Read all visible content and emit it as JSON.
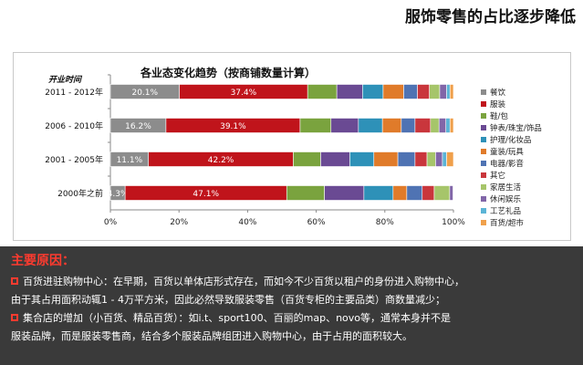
{
  "page": {
    "title": "服饰零售的占比逐步降低"
  },
  "chart_data": {
    "type": "bar",
    "orientation": "horizontal",
    "stacked": true,
    "percent_stacked": true,
    "title": "各业态变化趋势（按商铺数量计算）",
    "category_axis_title": "开业时间",
    "categories": [
      "2011 - 2012年",
      "2006 - 2010年",
      "2001 - 2005年",
      "2000年之前"
    ],
    "xlim": [
      0,
      100
    ],
    "x_ticks": [
      "0%",
      "20%",
      "40%",
      "60%",
      "80%",
      "100%"
    ],
    "legend_position": "right",
    "series": [
      {
        "name": "餐饮",
        "color": "#8c8c8c",
        "values": [
          20.1,
          16.2,
          11.1,
          4.3
        ],
        "labels": [
          "20.1%",
          "16.2%",
          "11.1%",
          "4.3%"
        ]
      },
      {
        "name": "服装",
        "color": "#c0141b",
        "values": [
          37.4,
          39.1,
          42.2,
          47.1
        ],
        "labels": [
          "37.4%",
          "39.1%",
          "42.2%",
          "47.1%"
        ]
      },
      {
        "name": "鞋/包",
        "color": "#7aa33e",
        "values": [
          8.5,
          9.0,
          8.0,
          11.0
        ],
        "labels": [
          "",
          "",
          "",
          ""
        ]
      },
      {
        "name": "钟表/珠宝/饰品",
        "color": "#6a4a93",
        "values": [
          7.5,
          8.0,
          8.5,
          11.5
        ],
        "labels": [
          "",
          "",
          "",
          ""
        ]
      },
      {
        "name": "护理/化妆品",
        "color": "#2e91b8",
        "values": [
          6.0,
          7.0,
          7.0,
          8.5
        ],
        "labels": [
          "",
          "",
          "",
          ""
        ]
      },
      {
        "name": "童装/玩具",
        "color": "#e07b2a",
        "values": [
          6.0,
          5.5,
          7.0,
          4.0
        ],
        "labels": [
          "",
          "",
          "",
          ""
        ]
      },
      {
        "name": "电器/影音",
        "color": "#4f73b3",
        "values": [
          4.0,
          4.0,
          5.0,
          4.5
        ],
        "labels": [
          "",
          "",
          "",
          ""
        ]
      },
      {
        "name": "其它",
        "color": "#c9363c",
        "values": [
          3.5,
          4.5,
          3.5,
          3.5
        ],
        "labels": [
          "",
          "",
          "",
          ""
        ]
      },
      {
        "name": "家居生活",
        "color": "#a6c56a",
        "values": [
          3.0,
          2.5,
          2.5,
          4.5
        ],
        "labels": [
          "",
          "",
          "",
          ""
        ]
      },
      {
        "name": "休闲娱乐",
        "color": "#8166a8",
        "values": [
          2.0,
          2.0,
          2.0,
          1.0
        ],
        "labels": [
          "",
          "",
          "",
          ""
        ]
      },
      {
        "name": "工艺礼品",
        "color": "#5bb4d6",
        "values": [
          1.0,
          1.2,
          1.2,
          0.1
        ],
        "labels": [
          "",
          "",
          "",
          ""
        ]
      },
      {
        "name": "百货/超市",
        "color": "#f0a04b",
        "values": [
          1.0,
          1.0,
          2.0,
          0.0
        ],
        "labels": [
          "",
          "",
          "",
          ""
        ]
      }
    ]
  },
  "reasons": {
    "title": "主要原因：",
    "items": [
      {
        "line1": "百货进驻购物中心：在早期，百货以单体店形式存在，而如今不少百货以租户的身份进入购物中心，",
        "line2": "由于其占用面积动辄1 - 4万平方米，因此必然导致服装零售（百货专柜的主要品类）商数量减少；"
      },
      {
        "line1": "集合店的增加（小百货、精品百货）：如i.t、sport100、百丽的map、novo等，通常本身并不是",
        "line2": "服装品牌，而是服装零售商，结合多个服装品牌组团进入购物中心，由于占用的面积较大。"
      }
    ]
  }
}
